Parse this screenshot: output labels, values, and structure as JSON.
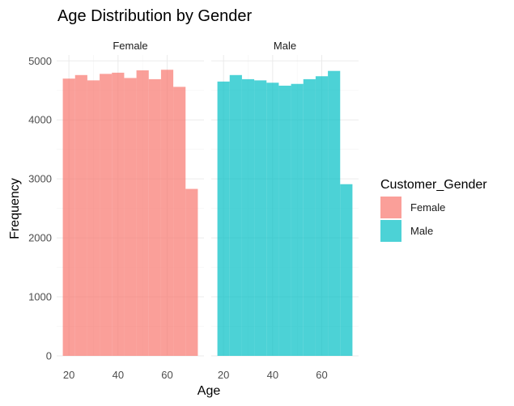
{
  "chart_data": {
    "type": "bar",
    "subtype": "faceted-histogram",
    "title": "Age Distribution by Gender",
    "xlabel": "Age",
    "ylabel": "Frequency",
    "xlim": [
      15,
      75
    ],
    "ylim": [
      0,
      5100
    ],
    "x_ticks": [
      20,
      40,
      60
    ],
    "y_ticks": [
      0,
      1000,
      2000,
      3000,
      4000,
      5000
    ],
    "grid": true,
    "legend": {
      "title": "Customer_Gender",
      "position": "right",
      "entries": [
        {
          "label": "Female",
          "color": "#F8766D"
        },
        {
          "label": "Male",
          "color": "#00BFC4"
        }
      ]
    },
    "bin_width": 5,
    "facets": [
      {
        "name": "Female",
        "color": "#F8766D",
        "bins": [
          {
            "x0": 17.5,
            "x1": 22.5,
            "y": 4700
          },
          {
            "x0": 22.5,
            "x1": 27.5,
            "y": 4760
          },
          {
            "x0": 27.5,
            "x1": 32.5,
            "y": 4670
          },
          {
            "x0": 32.5,
            "x1": 37.5,
            "y": 4780
          },
          {
            "x0": 37.5,
            "x1": 42.5,
            "y": 4800
          },
          {
            "x0": 42.5,
            "x1": 47.5,
            "y": 4710
          },
          {
            "x0": 47.5,
            "x1": 52.5,
            "y": 4840
          },
          {
            "x0": 52.5,
            "x1": 57.5,
            "y": 4690
          },
          {
            "x0": 57.5,
            "x1": 62.5,
            "y": 4850
          },
          {
            "x0": 62.5,
            "x1": 67.5,
            "y": 4560
          },
          {
            "x0": 67.5,
            "x1": 72.5,
            "y": 2830
          }
        ]
      },
      {
        "name": "Male",
        "color": "#00BFC4",
        "bins": [
          {
            "x0": 17.5,
            "x1": 22.5,
            "y": 4650
          },
          {
            "x0": 22.5,
            "x1": 27.5,
            "y": 4760
          },
          {
            "x0": 27.5,
            "x1": 32.5,
            "y": 4690
          },
          {
            "x0": 32.5,
            "x1": 37.5,
            "y": 4670
          },
          {
            "x0": 37.5,
            "x1": 42.5,
            "y": 4630
          },
          {
            "x0": 42.5,
            "x1": 47.5,
            "y": 4580
          },
          {
            "x0": 47.5,
            "x1": 52.5,
            "y": 4610
          },
          {
            "x0": 52.5,
            "x1": 57.5,
            "y": 4690
          },
          {
            "x0": 57.5,
            "x1": 62.5,
            "y": 4740
          },
          {
            "x0": 62.5,
            "x1": 67.5,
            "y": 4830
          },
          {
            "x0": 67.5,
            "x1": 72.5,
            "y": 2910
          }
        ]
      }
    ]
  }
}
